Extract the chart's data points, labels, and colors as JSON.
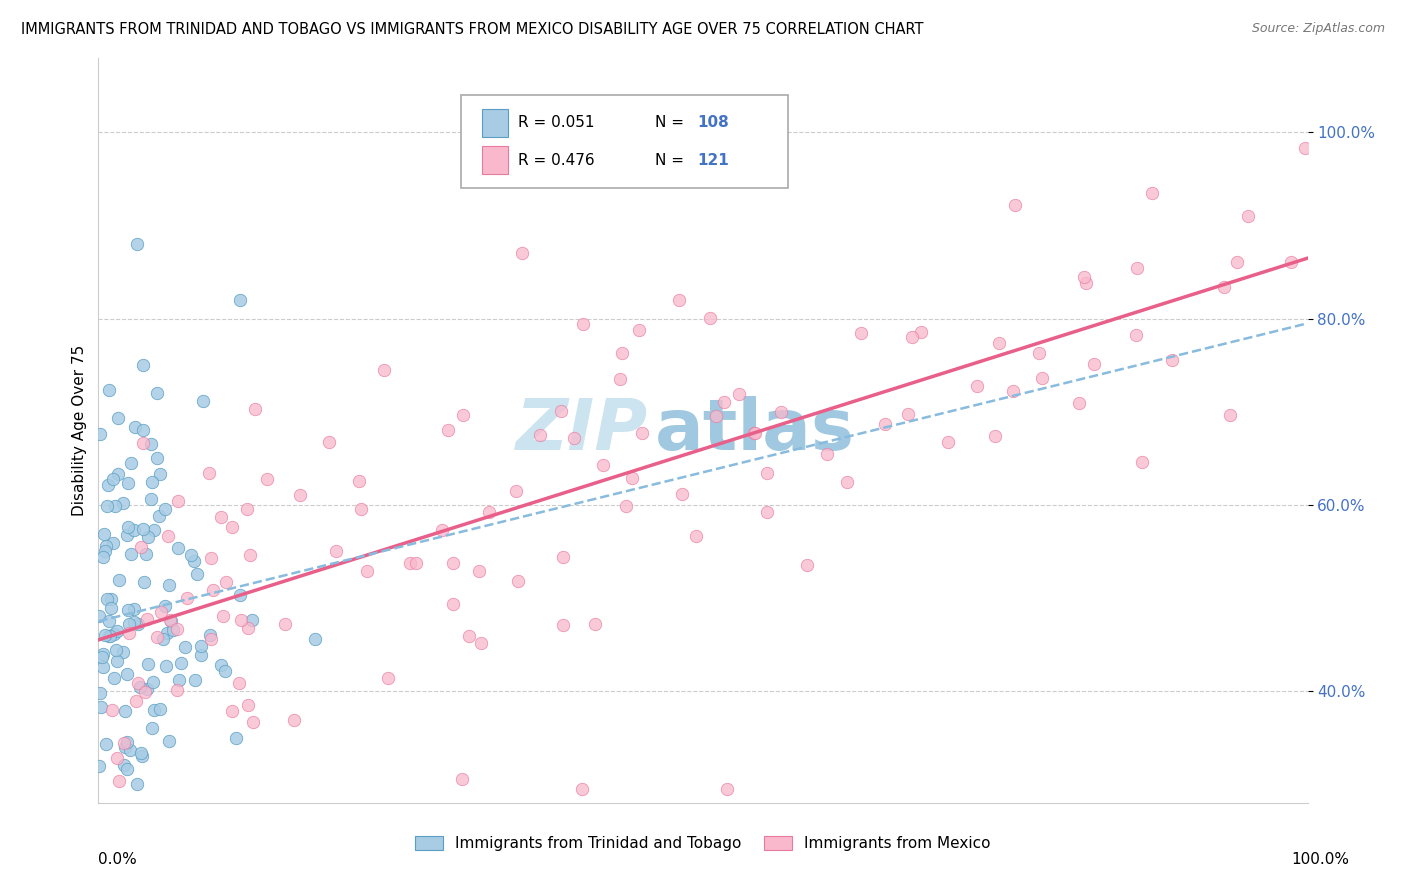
{
  "title": "IMMIGRANTS FROM TRINIDAD AND TOBAGO VS IMMIGRANTS FROM MEXICO DISABILITY AGE OVER 75 CORRELATION CHART",
  "source": "Source: ZipAtlas.com",
  "ylabel": "Disability Age Over 75",
  "ytick_labels": [
    "40.0%",
    "60.0%",
    "80.0%",
    "100.0%"
  ],
  "ytick_values": [
    0.4,
    0.6,
    0.8,
    1.0
  ],
  "xlim": [
    0.0,
    1.0
  ],
  "ylim": [
    0.28,
    1.08
  ],
  "legend_R1": "R = 0.051",
  "legend_N1": "N = 108",
  "legend_R2": "R = 0.476",
  "legend_N2": "N = 121",
  "color_blue": "#a8cce4",
  "color_blue_edge": "#5a9ec4",
  "color_pink": "#f9b8cc",
  "color_pink_edge": "#e87aa0",
  "color_trend_blue": "#88bbdd",
  "color_trend_pink": "#e8608a",
  "watermark_ZIP": "#cce4f0",
  "watermark_atlas": "#a0c8e0",
  "ytick_color": "#4472c4",
  "trend_blue_start_y": 0.475,
  "trend_blue_end_y": 0.795,
  "trend_pink_start_y": 0.455,
  "trend_pink_end_y": 0.865
}
